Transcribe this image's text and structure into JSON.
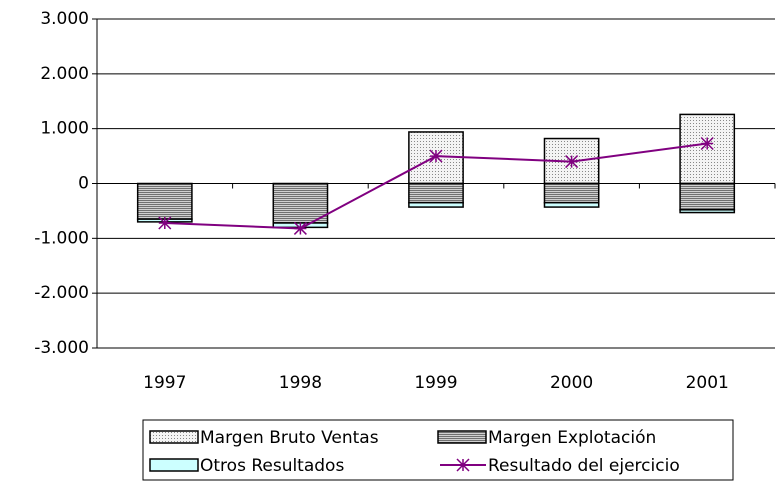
{
  "chart_data": {
    "type": "bar",
    "categories": [
      "1997",
      "1998",
      "1999",
      "2000",
      "2001"
    ],
    "series": [
      {
        "name": "Margen Bruto Ventas",
        "color": "#e8e8e8",
        "values": [
          0,
          0,
          940,
          820,
          1260
        ]
      },
      {
        "name": "Margen Explotación",
        "color": "#a0a0a0",
        "values": [
          -650,
          -720,
          -350,
          -350,
          -480
        ]
      },
      {
        "name": "Otros Resultados",
        "color": "#ccffff",
        "values": [
          -50,
          -80,
          -80,
          -80,
          -50
        ]
      },
      {
        "name": "Resultado del ejercicio",
        "color": "#800080",
        "type": "line",
        "values": [
          -720,
          -820,
          500,
          400,
          730
        ]
      }
    ],
    "ylim": [
      -3000,
      3000
    ],
    "yticks": [
      {
        "value": -3000,
        "label": "-3.000"
      },
      {
        "value": -2000,
        "label": "-2.000"
      },
      {
        "value": -1000,
        "label": "-1.000"
      },
      0,
      {
        "value": 1000,
        "label": "1.000"
      },
      {
        "value": 2000,
        "label": "2.000"
      },
      {
        "value": 3000,
        "label": "3.000"
      }
    ],
    "grid": true,
    "legend": "bottom"
  }
}
